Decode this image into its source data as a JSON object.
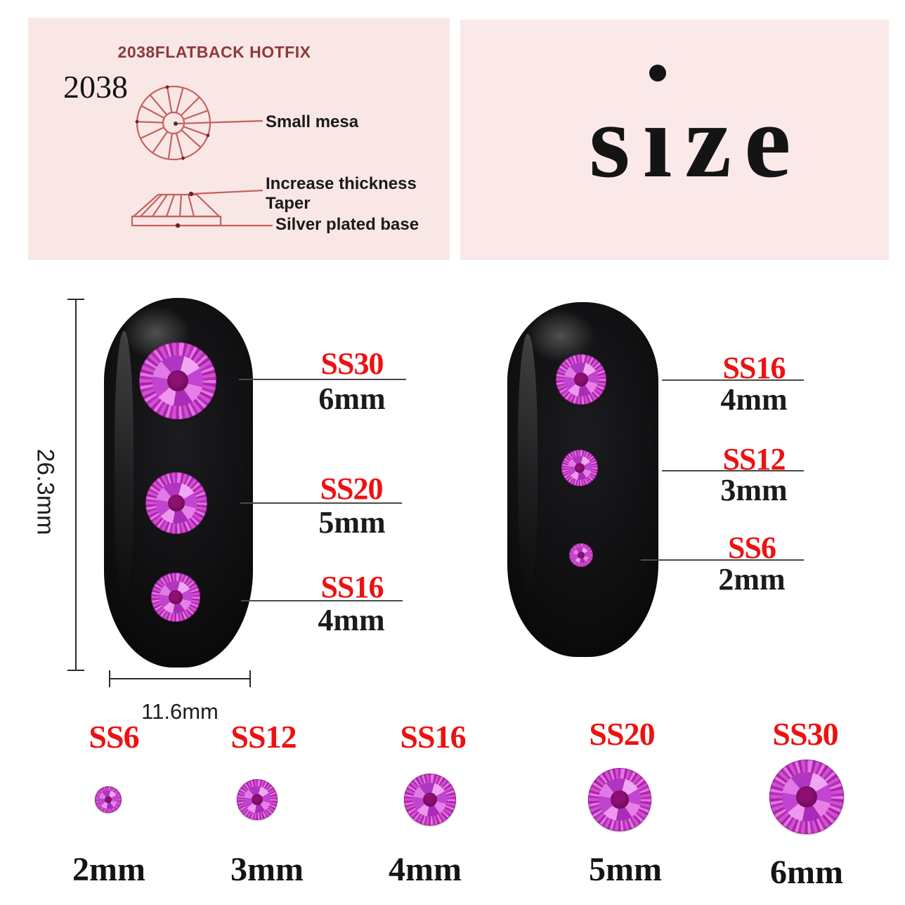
{
  "spec_panel": {
    "title": "2038FLATBACK HOTFIX",
    "model": "2038",
    "callout_small_mesa": "Small mesa",
    "callout_increase_thickness": "Increase thickness",
    "callout_taper": "Taper",
    "callout_silver_base": "Silver plated base"
  },
  "size_panel": {
    "word": "size",
    "word_s": "s",
    "word_i_dotless": "ı",
    "word_ze": "ze"
  },
  "left_nail": {
    "height_label": "26.3mm",
    "width_label": "11.6mm",
    "callouts": [
      {
        "ss": "SS30",
        "mm": "6mm"
      },
      {
        "ss": "SS20",
        "mm": "5mm"
      },
      {
        "ss": "SS16",
        "mm": "4mm"
      }
    ]
  },
  "right_nail": {
    "callouts": [
      {
        "ss": "SS16",
        "mm": "4mm"
      },
      {
        "ss": "SS12",
        "mm": "3mm"
      },
      {
        "ss": "SS6",
        "mm": "2mm"
      }
    ]
  },
  "size_row": [
    {
      "ss": "SS6",
      "mm": "2mm"
    },
    {
      "ss": "SS12",
      "mm": "3mm"
    },
    {
      "ss": "SS16",
      "mm": "4mm"
    },
    {
      "ss": "SS20",
      "mm": "5mm"
    },
    {
      "ss": "SS30",
      "mm": "6mm"
    }
  ],
  "colors": {
    "accent_red": "#ee1111",
    "panel_pink_left": "#f9e7e6",
    "panel_pink_right": "#fbe9ea",
    "diagram_stroke": "#c4625e",
    "title_maroon": "#8d3a3a",
    "stone_magenta": "#cc3fcc",
    "stone_center": "#5f0748",
    "nail_black": "#0a0a0c"
  }
}
